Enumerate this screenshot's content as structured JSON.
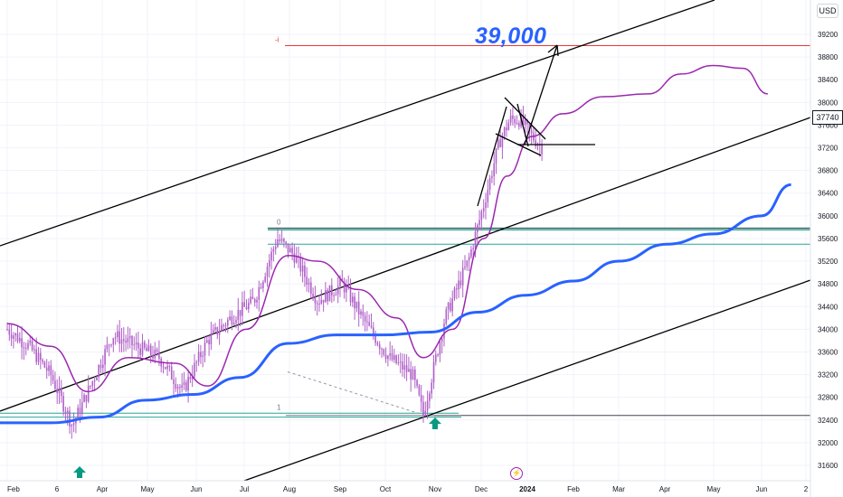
{
  "currency": "USD",
  "last_price_label": "37740",
  "target_label": "39,000",
  "marker_labels": {
    "top": "0",
    "bottom": "1",
    "target": "-i"
  },
  "flash_icon": "lightning-icon",
  "colors": {
    "bars": "#b061c8",
    "purple_ma": "#9c27b0",
    "blue_ma": "#2962ff",
    "green_level": "#26a69a",
    "red_level": "#e53935",
    "channel": "#000000",
    "arrow_marker": "#089981",
    "target_text": "#2962ff"
  },
  "chart_data": {
    "type": "candlestick",
    "x_tick_labels": [
      "Feb",
      "6",
      "Apr",
      "May",
      "Jun",
      "Jul",
      "Aug",
      "Sep",
      "Oct",
      "Nov",
      "Dec",
      "2024",
      "Feb",
      "Mar",
      "Apr",
      "May",
      "Jun",
      "2"
    ],
    "y_tick_labels": [
      "39200",
      "38800",
      "38400",
      "38000",
      "37600",
      "37200",
      "36800",
      "36400",
      "36000",
      "35600",
      "35200",
      "34800",
      "34400",
      "34000",
      "33600",
      "33200",
      "32800",
      "32400",
      "32000",
      "31600"
    ],
    "ylim": [
      31400,
      39400
    ],
    "grid": true,
    "horizontal_levels": [
      {
        "name": "target",
        "price": 39000,
        "color": "red"
      },
      {
        "name": "swing-high",
        "price": 35750,
        "color": "green"
      },
      {
        "name": "support",
        "price": 35500,
        "color": "green"
      },
      {
        "name": "swing-low",
        "price": 32520,
        "color": "green"
      },
      {
        "name": "base",
        "price": 32450,
        "color": "green"
      }
    ],
    "price_path": [
      [
        "2023-02-01",
        34000
      ],
      [
        "2023-02-15",
        33700
      ],
      [
        "2023-03-01",
        33200
      ],
      [
        "2023-03-15",
        32300
      ],
      [
        "2023-03-25",
        32900
      ],
      [
        "2023-04-10",
        33900
      ],
      [
        "2023-04-25",
        33700
      ],
      [
        "2023-05-10",
        33500
      ],
      [
        "2023-05-25",
        32900
      ],
      [
        "2023-06-10",
        33800
      ],
      [
        "2023-06-25",
        34200
      ],
      [
        "2023-07-10",
        34500
      ],
      [
        "2023-07-25",
        35600
      ],
      [
        "2023-08-05",
        35300
      ],
      [
        "2023-08-20",
        34500
      ],
      [
        "2023-09-05",
        34800
      ],
      [
        "2023-09-20",
        34100
      ],
      [
        "2023-10-05",
        33500
      ],
      [
        "2023-10-20",
        33200
      ],
      [
        "2023-10-27",
        32500
      ],
      [
        "2023-11-10",
        34200
      ],
      [
        "2023-11-25",
        35200
      ],
      [
        "2023-12-05",
        36200
      ],
      [
        "2023-12-15",
        37300
      ],
      [
        "2023-12-22",
        37700
      ],
      [
        "2023-12-28",
        37700
      ],
      [
        "2024-01-05",
        37400
      ],
      [
        "2024-01-12",
        37200
      ]
    ],
    "purple_ma": [
      [
        "2023-02-01",
        34100
      ],
      [
        "2023-03-01",
        33700
      ],
      [
        "2023-03-25",
        32900
      ],
      [
        "2023-04-20",
        33500
      ],
      [
        "2023-05-20",
        33400
      ],
      [
        "2023-06-10",
        33000
      ],
      [
        "2023-07-05",
        34000
      ],
      [
        "2023-08-01",
        35300
      ],
      [
        "2023-08-20",
        35200
      ],
      [
        "2023-09-15",
        34700
      ],
      [
        "2023-10-10",
        34200
      ],
      [
        "2023-10-27",
        33500
      ],
      [
        "2023-11-15",
        34000
      ],
      [
        "2023-12-05",
        35600
      ],
      [
        "2023-12-20",
        36700
      ],
      [
        "2024-01-05",
        37400
      ],
      [
        "2024-01-25",
        37800
      ],
      [
        "2024-02-20",
        38100
      ],
      [
        "2024-03-20",
        38150
      ],
      [
        "2024-04-10",
        38500
      ],
      [
        "2024-05-01",
        38650
      ],
      [
        "2024-05-20",
        38600
      ],
      [
        "2024-06-05",
        38150
      ]
    ],
    "blue_ma": [
      [
        "2023-01-25",
        32350
      ],
      [
        "2023-03-01",
        32350
      ],
      [
        "2023-04-01",
        32450
      ],
      [
        "2023-05-01",
        32750
      ],
      [
        "2023-06-01",
        32850
      ],
      [
        "2023-07-01",
        33150
      ],
      [
        "2023-08-01",
        33750
      ],
      [
        "2023-09-01",
        33900
      ],
      [
        "2023-10-01",
        33900
      ],
      [
        "2023-11-01",
        33950
      ],
      [
        "2023-12-01",
        34300
      ],
      [
        "2024-01-01",
        34600
      ],
      [
        "2024-02-01",
        34850
      ],
      [
        "2024-03-01",
        35200
      ],
      [
        "2024-04-01",
        35500
      ],
      [
        "2024-05-01",
        35680
      ],
      [
        "2024-06-01",
        36000
      ],
      [
        "2024-06-20",
        36550
      ]
    ]
  }
}
